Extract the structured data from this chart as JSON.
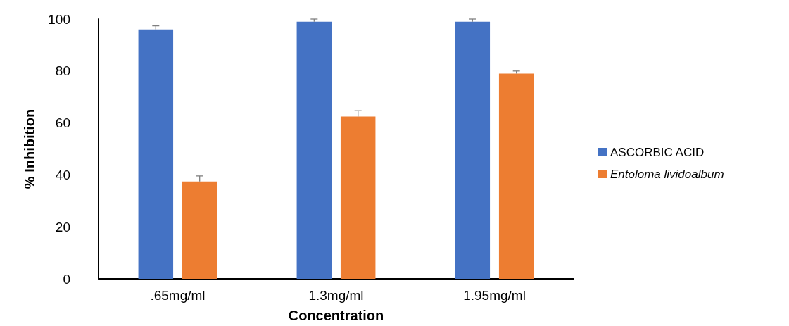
{
  "chart_data": {
    "type": "bar",
    "xlabel": "Concentration",
    "ylabel": "% Inhibition",
    "categories": [
      ".65mg/ml",
      "1.3mg/ml",
      "1.95mg/ml"
    ],
    "series": [
      {
        "name": "ASCORBIC ACID",
        "color": "#4472c4",
        "values": [
          96,
          99,
          99
        ],
        "errors": [
          [
            96,
            97.4
          ],
          [
            99,
            100
          ],
          [
            99,
            100
          ]
        ]
      },
      {
        "name": "Entoloma lividoalbum",
        "color": "#ed7d31",
        "values": [
          37.5,
          62.5,
          79
        ],
        "errors": [
          [
            37.5,
            39.6
          ],
          [
            62.5,
            64.7
          ],
          [
            79,
            80
          ]
        ]
      }
    ],
    "ylim": [
      0,
      100
    ],
    "yticks": [
      0,
      20,
      40,
      60,
      80,
      100
    ],
    "grid": false,
    "legend": "right"
  }
}
